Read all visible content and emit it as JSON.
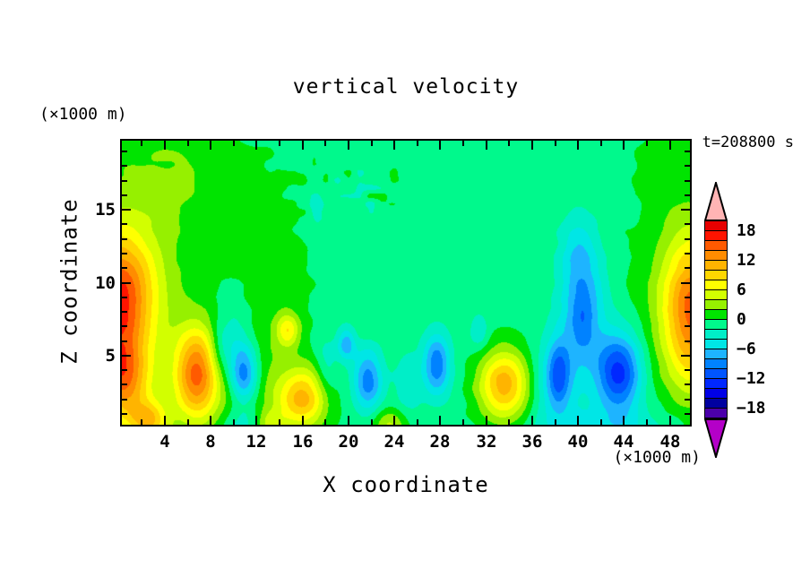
{
  "title": "vertical velocity",
  "timestamp_label": "t=208800 s",
  "x_axis": {
    "label": "X coordinate",
    "unit_label": "(×1000 m)",
    "range": [
      0.25,
      49.75
    ],
    "major_tick_values": [
      4,
      8,
      12,
      16,
      20,
      24,
      28,
      32,
      36,
      40,
      44,
      48
    ],
    "minor_tick_step": 2
  },
  "z_axis": {
    "label": "Z coordinate",
    "unit_label": "(×1000 m)",
    "range": [
      0.25,
      19.75
    ],
    "major_tick_values": [
      5,
      10,
      15
    ],
    "minor_tick_step": 1
  },
  "colorbar": {
    "min": -20,
    "max": 20,
    "contour_interval": 2,
    "label_values": [
      18,
      12,
      6,
      0,
      -6,
      -12,
      -18
    ],
    "label_texts": [
      "18",
      "12",
      "6",
      "0",
      "−6",
      "−12",
      "−18"
    ],
    "segment_colors_top_to_bottom": [
      "#e60000",
      "#ff1400",
      "#ff5a00",
      "#ff8c00",
      "#ffb400",
      "#ffd700",
      "#ffff00",
      "#d2ff00",
      "#96f000",
      "#00e400",
      "#00f98c",
      "#00eec8",
      "#00e6e6",
      "#1eb4ff",
      "#0082ff",
      "#0055ff",
      "#0028ff",
      "#0000e6",
      "#0000a0",
      "#4b00aa"
    ],
    "over_color": "#ffb4b4",
    "under_color": "#b400c8"
  },
  "chart_data": {
    "type": "heatmap",
    "quantity": "vertical velocity",
    "x_range_km": [
      0,
      50
    ],
    "z_range_km": [
      0,
      20
    ],
    "contour_interval": 2,
    "background_value": -0.75,
    "features": [
      {
        "name": "left-edge-updraft-main",
        "x": 0.0,
        "z": 8.8,
        "sx": 2.2,
        "sz": 3.3,
        "peak": 15.5
      },
      {
        "name": "left-edge-updraft-low",
        "x": 0.3,
        "z": 3.2,
        "sx": 1.5,
        "sz": 2.0,
        "peak": 10.5
      },
      {
        "name": "left-plume-green-halo",
        "x": 1.5,
        "z": 10.5,
        "sx": 4.8,
        "sz": 6.5,
        "peak": 2.2
      },
      {
        "name": "surface-updraft-x2.6",
        "x": 2.6,
        "z": 0.5,
        "sx": 1.2,
        "sz": 1.0,
        "peak": 9.0
      },
      {
        "name": "updraft-x6.8",
        "x": 6.8,
        "z": 3.8,
        "sx": 1.35,
        "sz": 2.2,
        "peak": 13.5
      },
      {
        "name": "updraft-x16",
        "x": 16.0,
        "z": 2.1,
        "sx": 1.5,
        "sz": 1.4,
        "peak": 10.5
      },
      {
        "name": "updraft-x14.7-mid",
        "x": 14.7,
        "z": 6.7,
        "sx": 0.7,
        "sz": 0.8,
        "peak": 6.8
      },
      {
        "name": "updraft-x33.6",
        "x": 33.6,
        "z": 3.0,
        "sx": 1.6,
        "sz": 1.7,
        "peak": 12.0
      },
      {
        "name": "right-edge-updraft",
        "x": 50.0,
        "z": 8.0,
        "sx": 1.8,
        "sz": 3.4,
        "peak": 13.2
      },
      {
        "name": "right-edge-green-halo",
        "x": 49.5,
        "z": 9.0,
        "sx": 3.4,
        "sz": 6.0,
        "peak": 2.6
      },
      {
        "name": "green-corner-top-right",
        "x": 47.5,
        "z": 18.5,
        "sx": 1.5,
        "sz": 2.0,
        "peak": 1.5
      },
      {
        "name": "surface-chartreuse-x23.5",
        "x": 23.5,
        "z": 0.2,
        "sx": 1.1,
        "sz": 0.8,
        "peak": 5.0
      },
      {
        "name": "surface-chartreuse-x13.2",
        "x": 13.2,
        "z": 0.2,
        "sx": 0.9,
        "sz": 0.7,
        "peak": 4.5
      },
      {
        "name": "green-column-x13.5",
        "x": 13.5,
        "z": 8.0,
        "sx": 2.2,
        "sz": 5.5,
        "peak": 1.9
      },
      {
        "name": "green-lobe-top-left",
        "x": 5.0,
        "z": 17.5,
        "sx": 4.5,
        "sz": 3.0,
        "peak": 2.0
      },
      {
        "name": "green-lobe-bottom-left",
        "x": 8.0,
        "z": 2.5,
        "sx": 6.0,
        "sz": 2.8,
        "peak": 1.6
      },
      {
        "name": "downdraft-x10.9",
        "x": 10.9,
        "z": 3.7,
        "sx": 0.85,
        "sz": 1.35,
        "peak": -9.5
      },
      {
        "name": "downdraft-x10-upper",
        "x": 10.0,
        "z": 6.3,
        "sx": 1.1,
        "sz": 1.8,
        "peak": -3.4
      },
      {
        "name": "turquoise-x8.7",
        "x": 8.7,
        "z": 5.3,
        "sx": 0.7,
        "sz": 1.3,
        "peak": -3.0
      },
      {
        "name": "turquoise-bottom-x10.8",
        "x": 10.8,
        "z": 0.0,
        "sx": 1.4,
        "sz": 0.9,
        "peak": -3.2
      },
      {
        "name": "downdraft-x21.7",
        "x": 21.7,
        "z": 3.3,
        "sx": 0.9,
        "sz": 1.5,
        "peak": -8.6
      },
      {
        "name": "downdraft-x19.8-upper",
        "x": 19.8,
        "z": 5.8,
        "sx": 0.55,
        "sz": 0.8,
        "peak": -6.5
      },
      {
        "name": "turquoise-x18.1",
        "x": 18.1,
        "z": 4.2,
        "sx": 0.7,
        "sz": 1.6,
        "peak": -3.0
      },
      {
        "name": "turquoise-x25.2",
        "x": 25.2,
        "z": 3.2,
        "sx": 0.8,
        "sz": 1.5,
        "peak": -3.2
      },
      {
        "name": "downdraft-x27.7",
        "x": 27.7,
        "z": 4.4,
        "sx": 0.85,
        "sz": 1.5,
        "peak": -8.8
      },
      {
        "name": "turquoise-x31.4",
        "x": 31.4,
        "z": 6.6,
        "sx": 0.6,
        "sz": 0.9,
        "peak": -3.0
      },
      {
        "name": "downdraft-x38.3",
        "x": 38.3,
        "z": 3.7,
        "sx": 0.7,
        "sz": 1.6,
        "peak": -6.8
      },
      {
        "name": "cyan-patch-x37.9",
        "x": 37.9,
        "z": 3.3,
        "sx": 1.6,
        "sz": 2.2,
        "peak": -4.0
      },
      {
        "name": "downdraft-tower-x40.4",
        "x": 40.4,
        "z": 8.0,
        "sx": 1.4,
        "sz": 3.0,
        "peak": -7.0
      },
      {
        "name": "downdraft-tower-core",
        "x": 40.4,
        "z": 7.4,
        "sx": 0.7,
        "sz": 1.6,
        "peak": -2.2
      },
      {
        "name": "downdraft-tower-top",
        "x": 40.0,
        "z": 12.3,
        "sx": 1.1,
        "sz": 1.8,
        "peak": -3.2
      },
      {
        "name": "downdraft-deep-x43.6",
        "x": 43.6,
        "z": 3.8,
        "sx": 1.35,
        "sz": 1.85,
        "peak": -12.6
      },
      {
        "name": "turquoise-band-bottom-right",
        "x": 42.5,
        "z": 0.0,
        "sx": 4.5,
        "sz": 1.1,
        "peak": -3.6
      },
      {
        "name": "turquoise-x17.3-upper",
        "x": 17.3,
        "z": 15.0,
        "sx": 0.4,
        "sz": 0.7,
        "peak": -2.6
      }
    ],
    "speckle_noise": {
      "cx": 20.5,
      "cz": 16.3,
      "sx": 3.4,
      "sz": 1.7,
      "amp": 2.4,
      "lx": 1.0,
      "lz": 0.55
    },
    "global_noise": {
      "amp": 0.3,
      "lx": 1.8,
      "lz": 0.9
    }
  }
}
